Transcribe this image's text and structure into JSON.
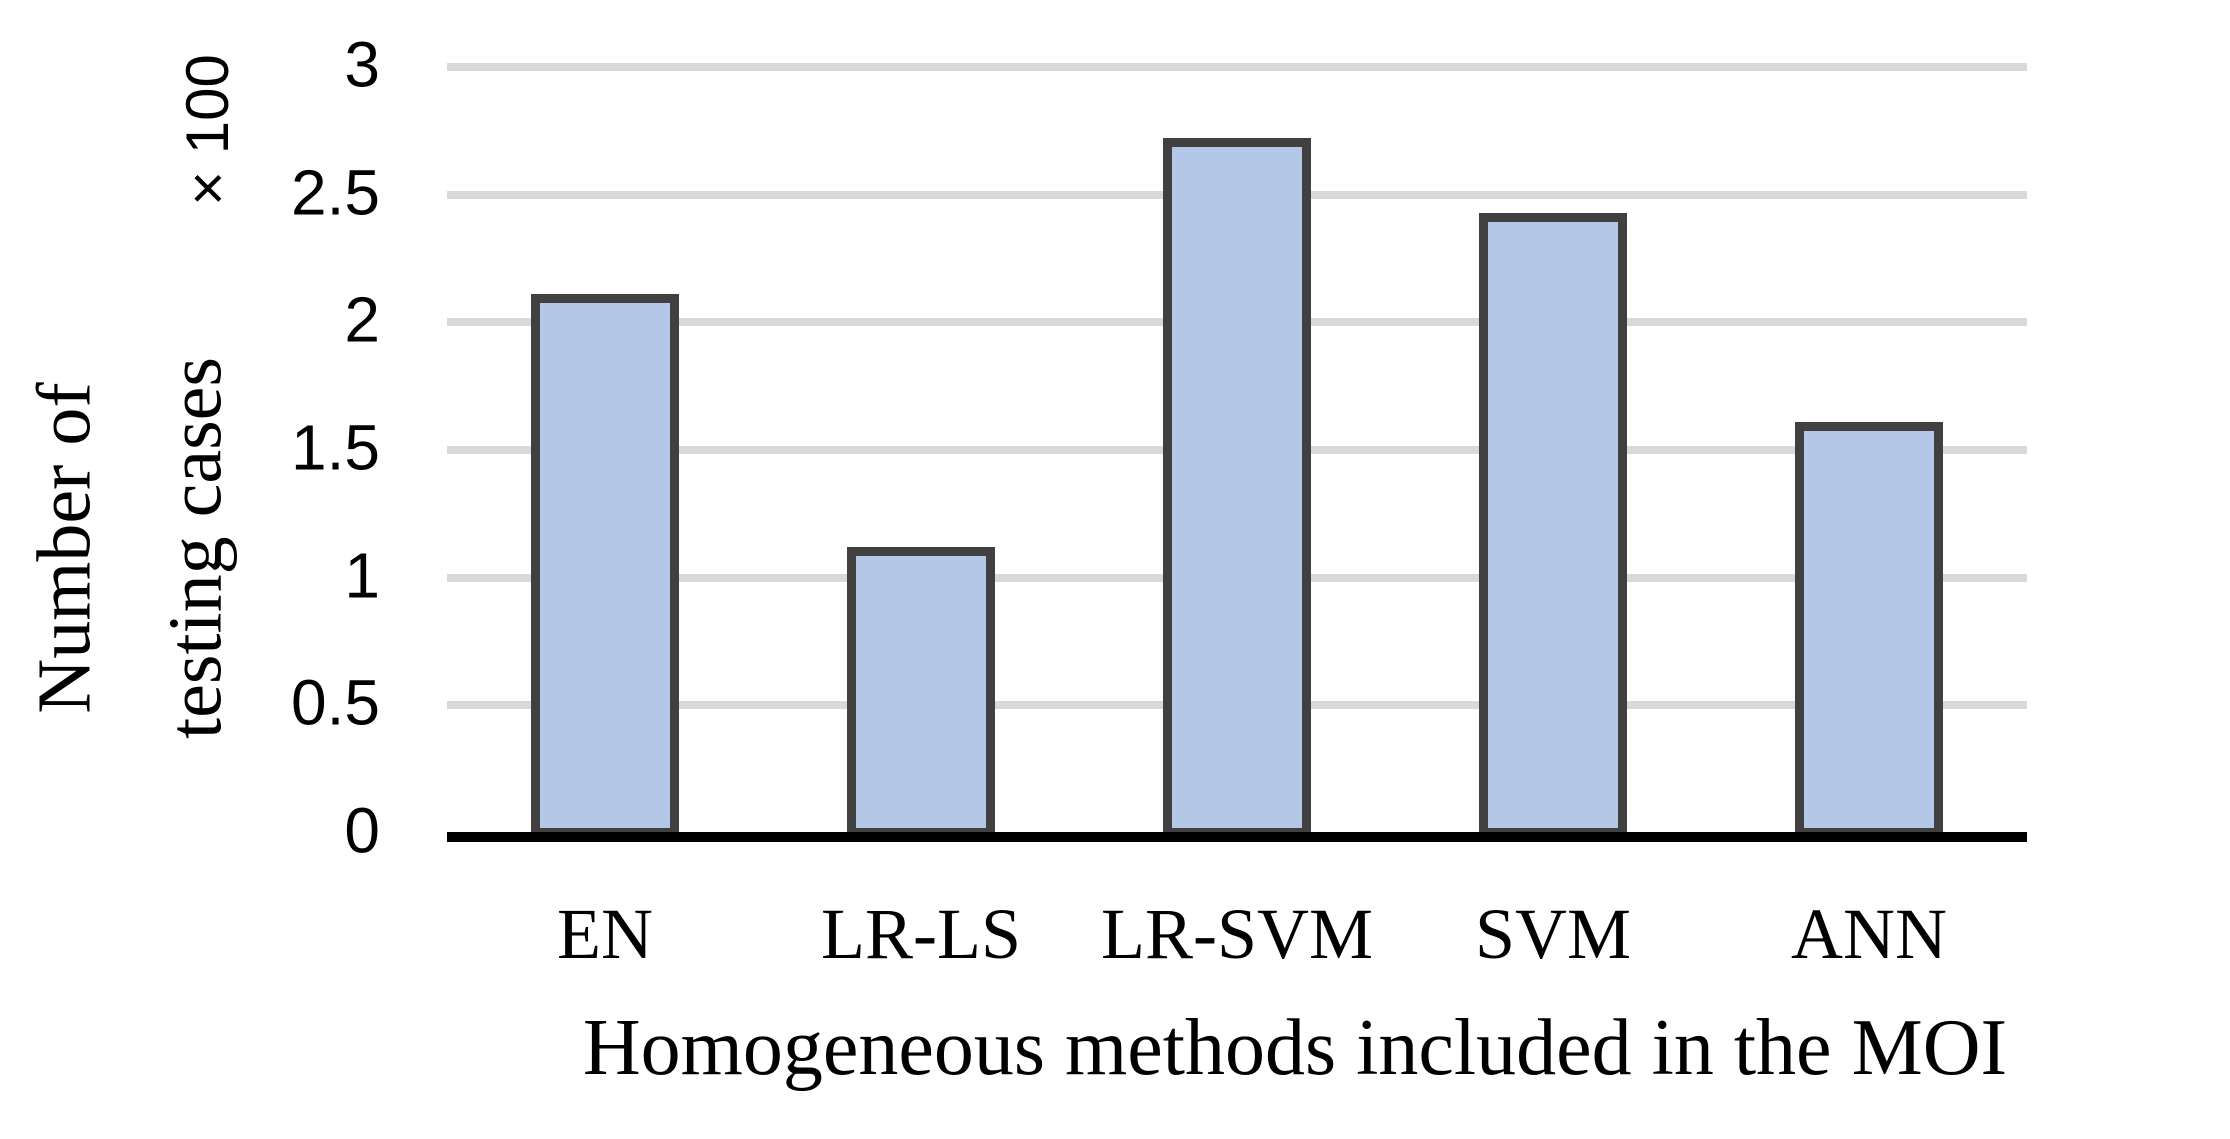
{
  "chart_data": {
    "type": "bar",
    "title": "",
    "categories": [
      "EN",
      "LR-LS",
      "LR-SVM",
      "SVM",
      "ANN"
    ],
    "values": [
      2.11,
      1.12,
      2.72,
      2.43,
      1.61
    ],
    "unit_note": "× 100",
    "unit_multiplier": 100,
    "xlabel": "Homogeneous methods included in the MOI",
    "ylabel": "Number of testing cases",
    "ylabel_lines": [
      "Number of",
      "testing cases"
    ],
    "yticks": [
      0,
      0.5,
      1,
      1.5,
      2,
      2.5,
      3
    ],
    "ytick_labels": [
      "0",
      "0.5",
      "1",
      "1.5",
      "2",
      "2.5",
      "3"
    ],
    "ylim": [
      0,
      3
    ],
    "grid": "horizontal",
    "legend": "none",
    "colors": {
      "bar_fill": "#b4c7e7",
      "bar_border": "#404040",
      "gridline": "#d9d9d9",
      "axis_line": "#000000",
      "text": "#000000",
      "background": "#ffffff"
    }
  }
}
